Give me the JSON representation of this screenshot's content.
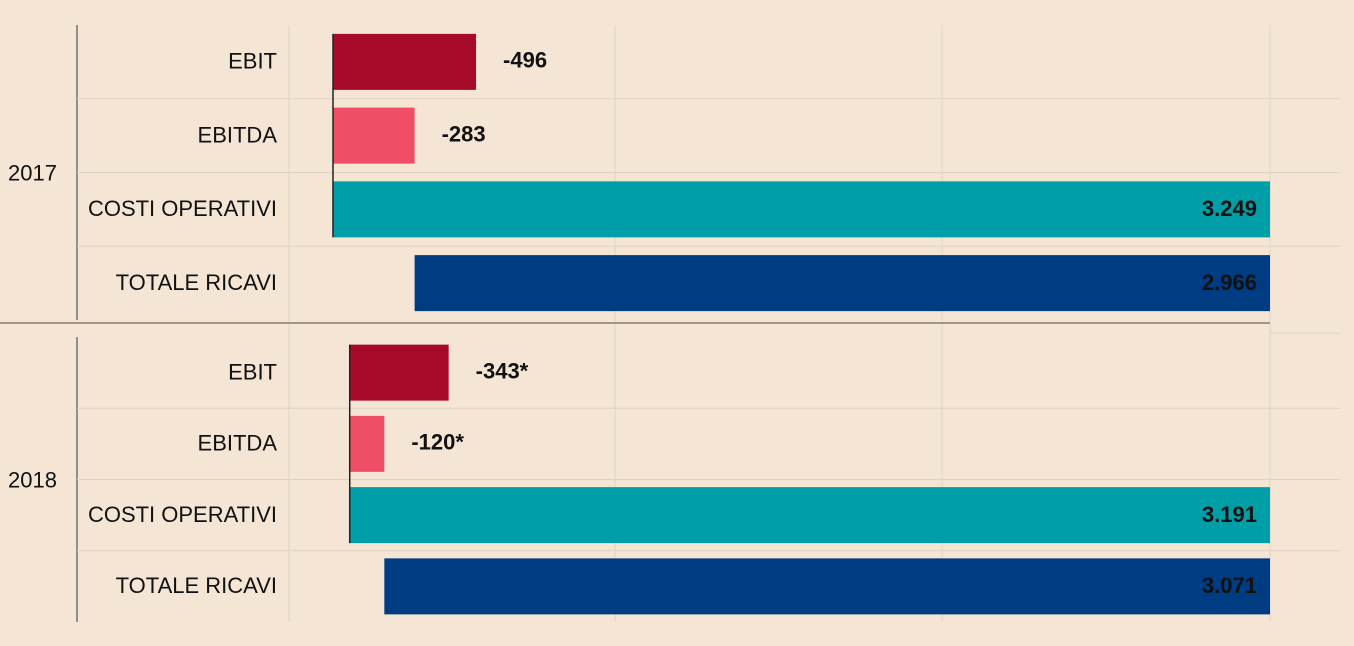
{
  "chart_data": [
    {
      "type": "bar",
      "title": "2017",
      "categories": [
        "EBIT",
        "EBITDA",
        "COSTI OPERATIVI",
        "TOTALE RICAVI"
      ],
      "values": [
        -496,
        -283,
        3249,
        2966
      ],
      "value_labels": [
        "-496",
        "-283",
        "3.249",
        "2.966"
      ],
      "colors": [
        "#a50b28",
        "#f04e66",
        "#009ea7",
        "#003c82"
      ]
    },
    {
      "type": "bar",
      "title": "2018",
      "categories": [
        "EBIT",
        "EBITDA",
        "COSTI OPERATIVI",
        "TOTALE RICAVI"
      ],
      "values": [
        -343,
        -120,
        3191,
        3071
      ],
      "value_labels": [
        "-343*",
        "-120*",
        "3.191",
        "3.071"
      ],
      "colors": [
        "#a50b28",
        "#f04e66",
        "#009ea7",
        "#003c82"
      ]
    }
  ]
}
